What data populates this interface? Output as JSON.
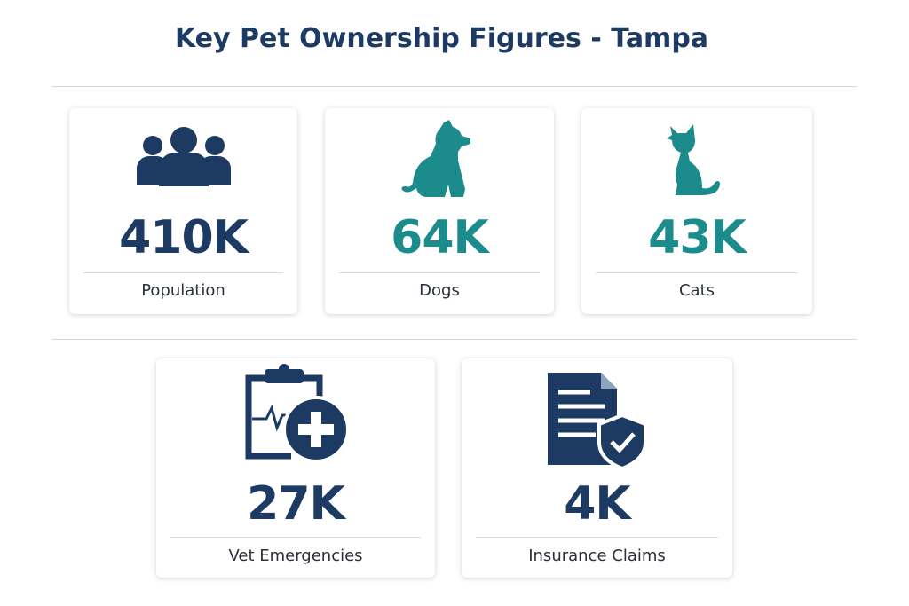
{
  "header": {
    "title": "Key Pet Ownership Figures - Tampa"
  },
  "cards": [
    {
      "value": "410K",
      "label": "Population"
    },
    {
      "value": "64K",
      "label": "Dogs"
    },
    {
      "value": "43K",
      "label": "Cats"
    },
    {
      "value": "27K",
      "label": "Vet Emergencies"
    },
    {
      "value": "4K",
      "label": "Insurance Claims"
    }
  ]
}
